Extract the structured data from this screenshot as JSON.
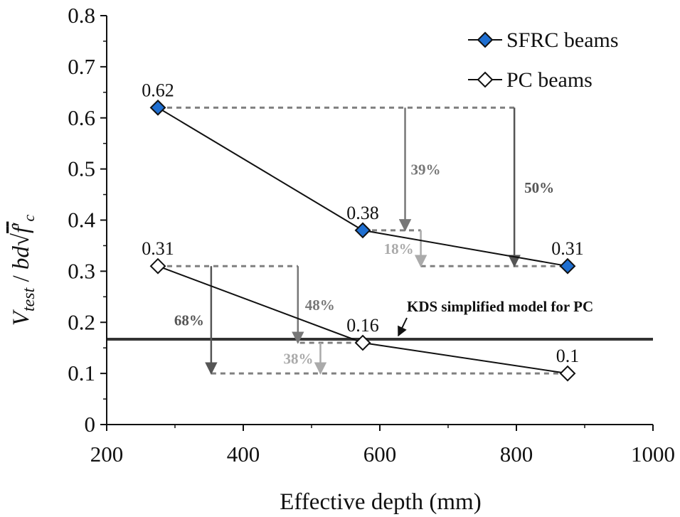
{
  "chart_data": {
    "type": "line",
    "xlabel": "Effective depth (mm)",
    "ylabel": {
      "v": "V",
      "sub": "test",
      "slash": " / ",
      "bd": "bd",
      "f": "f",
      "prime": "′",
      "c": "c"
    },
    "xlim": [
      200,
      1000
    ],
    "ylim": [
      0,
      0.8
    ],
    "x_ticks": [
      "200",
      "400",
      "600",
      "800",
      "1000"
    ],
    "y_ticks": [
      "0",
      "0.1",
      "0.2",
      "0.3",
      "0.4",
      "0.5",
      "0.6",
      "0.7",
      "0.8"
    ],
    "grid": false,
    "legend_position": "top-right",
    "series": [
      {
        "name": "SFRC beams",
        "marker": "diamond-filled",
        "color": "#1f6fd1",
        "x": [
          275,
          575,
          875
        ],
        "y": [
          0.62,
          0.38,
          0.31
        ],
        "labels": [
          "0.62",
          "0.38",
          "0.31"
        ]
      },
      {
        "name": "PC beams",
        "marker": "diamond-open",
        "color": "#ffffff",
        "x": [
          275,
          575,
          875
        ],
        "y": [
          0.31,
          0.16,
          0.1
        ],
        "labels": [
          "0.31",
          "0.16",
          "0.1"
        ]
      }
    ],
    "reference_line": {
      "label": "KDS simplified model for PC",
      "y": 0.167,
      "color": "#333333"
    },
    "annotations": [
      {
        "text": "39%",
        "x_arrow": 637,
        "y_from": 0.62,
        "y_to": 0.38,
        "color": "#777777"
      },
      {
        "text": "50%",
        "x_arrow": 797,
        "y_from": 0.62,
        "y_to": 0.31,
        "color": "#555555"
      },
      {
        "text": "18%",
        "x_arrow": 660,
        "y_from": 0.38,
        "y_to": 0.31,
        "color": "#aaaaaa"
      },
      {
        "text": "68%",
        "x_arrow": 353,
        "y_from": 0.31,
        "y_to": 0.1,
        "color": "#555555"
      },
      {
        "text": "48%",
        "x_arrow": 480,
        "y_from": 0.31,
        "y_to": 0.16,
        "color": "#777777"
      },
      {
        "text": "38%",
        "x_arrow": 513,
        "y_from": 0.16,
        "y_to": 0.1,
        "color": "#aaaaaa"
      }
    ]
  }
}
